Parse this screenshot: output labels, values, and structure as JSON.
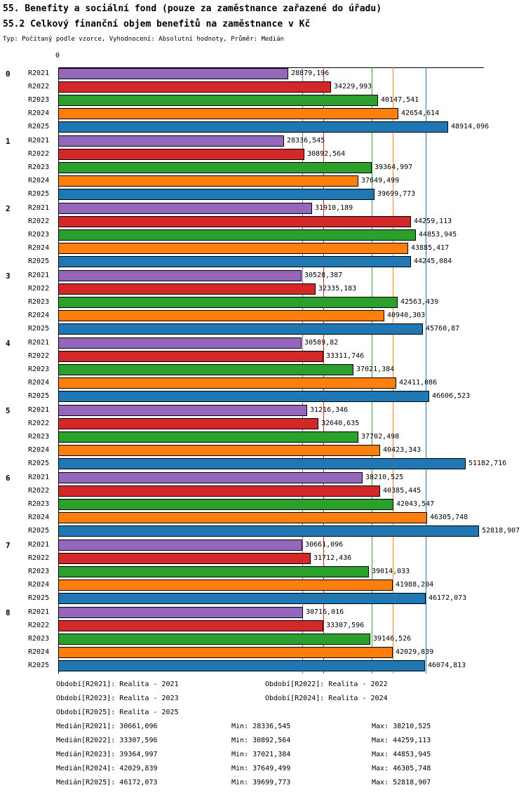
{
  "chart_data": {
    "type": "bar",
    "orientation": "horizontal",
    "title": "55. Benefity a sociální fond (pouze za zaměstnance zařazené do úřadu)",
    "subtitle": "55.2 Celkový finanční objem benefitů na zaměstnance v Kč",
    "note": "Typ: Počítaný podle vzorce, Vyhodnocení: Absolutní hodnoty, Průměr: Medián",
    "xlim": [
      0,
      53435
    ],
    "x_tick_labels": [
      "0"
    ],
    "grid": false,
    "legend_position": "bottom",
    "categories": [
      "0",
      "1",
      "2",
      "3",
      "4",
      "5",
      "6",
      "7",
      "8"
    ],
    "series": [
      {
        "name": "R2021",
        "color": "#9467bd",
        "values": [
          28879.196,
          28336.545,
          31910.189,
          30528.387,
          30589.82,
          31216.346,
          38210.525,
          30661.096,
          30716.016
        ],
        "labels": [
          "28879,196",
          "28336,545",
          "31910,189",
          "30528,387",
          "30589,82",
          "31216,346",
          "38210,525",
          "30661,096",
          "30716,016"
        ],
        "median": 30661.096
      },
      {
        "name": "R2022",
        "color": "#d62728",
        "values": [
          34229.993,
          30892.564,
          44259.113,
          32335.183,
          33311.746,
          32640.635,
          40385.445,
          31712.436,
          33307.596
        ],
        "labels": [
          "34229,993",
          "30892,564",
          "44259,113",
          "32335,183",
          "33311,746",
          "32640,635",
          "40385,445",
          "31712,436",
          "33307,596"
        ],
        "median": 33307.596
      },
      {
        "name": "R2023",
        "color": "#2ca02c",
        "values": [
          40147.541,
          39364.997,
          44853.945,
          42563.439,
          37021.384,
          37702.498,
          42043.547,
          39014.033,
          39146.526
        ],
        "labels": [
          "40147,541",
          "39364,997",
          "44853,945",
          "42563,439",
          "37021,384",
          "37702,498",
          "42043,547",
          "39014,033",
          "39146,526"
        ],
        "median": 39364.997
      },
      {
        "name": "R2024",
        "color": "#ff7f0e",
        "values": [
          42654.614,
          37649.499,
          43885.417,
          40940.303,
          42411.086,
          40423.343,
          46305.748,
          41988.204,
          42029.839
        ],
        "labels": [
          "42654,614",
          "37649,499",
          "43885,417",
          "40940,303",
          "42411,086",
          "40423,343",
          "46305,748",
          "41988,204",
          "42029,839"
        ],
        "median": 42029.839
      },
      {
        "name": "R2025",
        "color": "#1f77b4",
        "values": [
          48914.096,
          39699.773,
          44245.084,
          45760.87,
          46606.523,
          51182.716,
          52818.907,
          46172.073,
          46074.813
        ],
        "labels": [
          "48914,096",
          "39699,773",
          "44245,084",
          "45760,87",
          "46606,523",
          "51182,716",
          "52818,907",
          "46172,073",
          "46074,813"
        ],
        "median": 46172.073
      }
    ]
  },
  "legend": {
    "rows": [
      [
        "Období[R2021]: Realita - 2021",
        "Období[R2022]: Realita - 2022"
      ],
      [
        "Období[R2023]: Realita - 2023",
        "Období[R2024]: Realita - 2024"
      ],
      [
        "Období[R2025]: Realita - 2025"
      ]
    ]
  },
  "stats": {
    "rows": [
      {
        "median": "Medián[R2021]: 30661,096",
        "min": "Min: 28336,545",
        "max": "Max: 38210,525"
      },
      {
        "median": "Medián[R2022]: 33307,596",
        "min": "Min: 30892,564",
        "max": "Max: 44259,113"
      },
      {
        "median": "Medián[R2023]: 39364,997",
        "min": "Min: 37021,384",
        "max": "Max: 44853,945"
      },
      {
        "median": "Medián[R2024]: 42029,839",
        "min": "Min: 37649,499",
        "max": "Max: 46305,748"
      },
      {
        "median": "Medián[R2025]: 46172,073",
        "min": "Min: 39699,773",
        "max": "Max: 52818,907"
      }
    ]
  }
}
